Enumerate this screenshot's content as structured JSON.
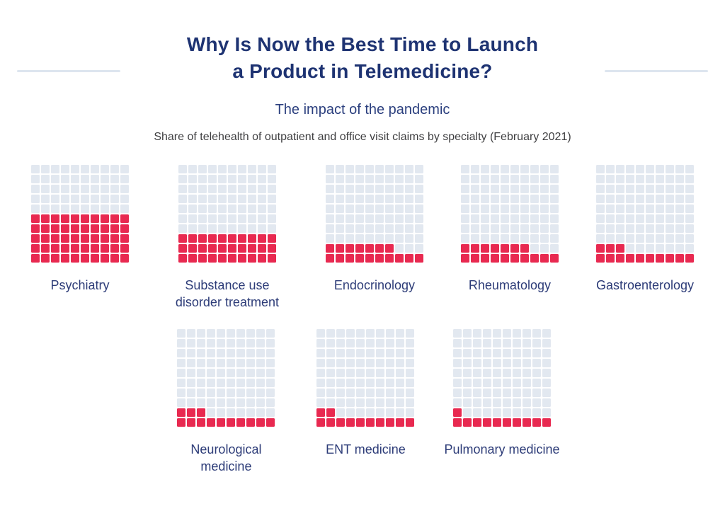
{
  "header": {
    "title_line1": "Why Is Now the Best Time to Launch",
    "title_line2": "a Product in Telemedicine?",
    "subtitle": "The impact of the pandemic",
    "caption": "Share of telehealth of outpatient and office visit claims by specialty (February 2021)"
  },
  "colors": {
    "title": "#1E3372",
    "subtitle": "#2B3F7E",
    "label": "#2D3C78",
    "caption": "#3F3F41",
    "cell_empty": "#E2E8F0",
    "cell_filled": "#E82950",
    "divider": "#DDE5EF"
  },
  "chart_data": {
    "type": "waffle",
    "title": "Share of telehealth of outpatient and office visit claims by specialty (February 2021)",
    "grid_rows": 10,
    "grid_cols": 10,
    "values_meaning": "filled squares out of 100, filled from bottom-left upward",
    "categories": [
      "Psychiatry",
      "Substance use disorder treatment",
      "Endocrinology",
      "Rheumatology",
      "Gastroenterology",
      "Neurological medicine",
      "ENT medicine",
      "Pulmonary medicine"
    ],
    "values": [
      50,
      30,
      17,
      17,
      13,
      13,
      12,
      11
    ],
    "row_layout": [
      5,
      3
    ],
    "legend": "none",
    "fill_color": "#E82950",
    "empty_color": "#E2E8F0"
  }
}
